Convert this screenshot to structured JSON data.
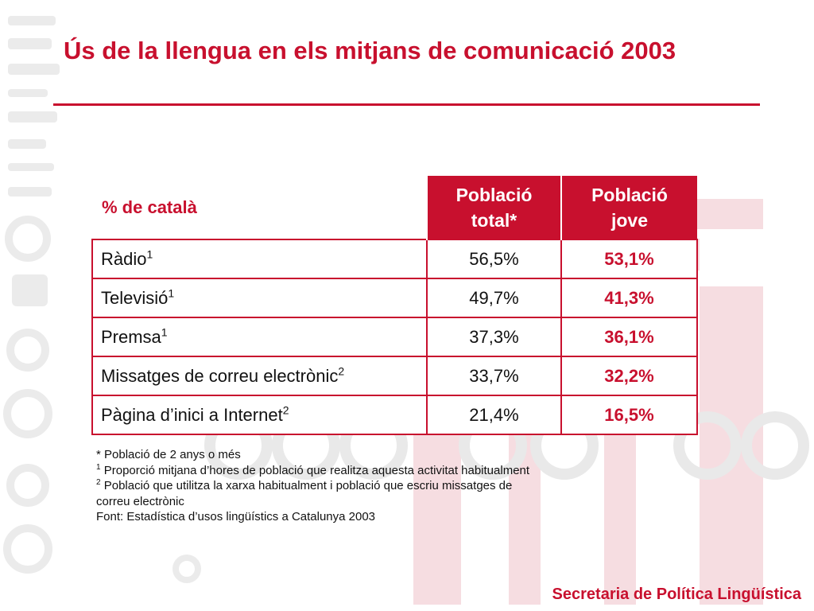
{
  "slide": {
    "title": "Ús de la llengua en els mitjans de comunicació 2003",
    "footer": "Secretaria de Política Lingüística"
  },
  "table": {
    "corner_label": "% de català",
    "col_total": {
      "line1": "Població",
      "line2": "total*"
    },
    "col_jove": {
      "line1": "Població",
      "line2": "jove"
    },
    "rows": [
      {
        "label": "Ràdio",
        "note": "1",
        "total": "56,5%",
        "jove": "53,1%"
      },
      {
        "label": "Televisió",
        "note": "1",
        "total": "49,7%",
        "jove": "41,3%"
      },
      {
        "label": "Premsa",
        "note": "1",
        "total": "37,3%",
        "jove": "36,1%"
      },
      {
        "label": "Missatges de correu electrònic",
        "note": "2",
        "total": "33,7%",
        "jove": "32,2%"
      },
      {
        "label": "Pàgina d’inici a Internet",
        "note": "2",
        "total": "21,4%",
        "jove": "16,5%"
      }
    ]
  },
  "notes": {
    "n_star": "* Població de 2 anys o més",
    "n1_mark": "1",
    "n1_text": " Proporció mitjana d’hores de població que realitza aquesta activitat  habitualment",
    "n2_mark": "2",
    "n2_text_a": " Població que utilitza la xarxa habitualment i població que escriu missatges de",
    "n2_text_b": "correu electrònic",
    "source": "Font: Estadística d’usos lingüístics a Catalunya 2003"
  },
  "colors": {
    "accent": "#c8102e",
    "watermark_red": "#f4d3d8",
    "watermark_gray": "#e6e6e6"
  }
}
